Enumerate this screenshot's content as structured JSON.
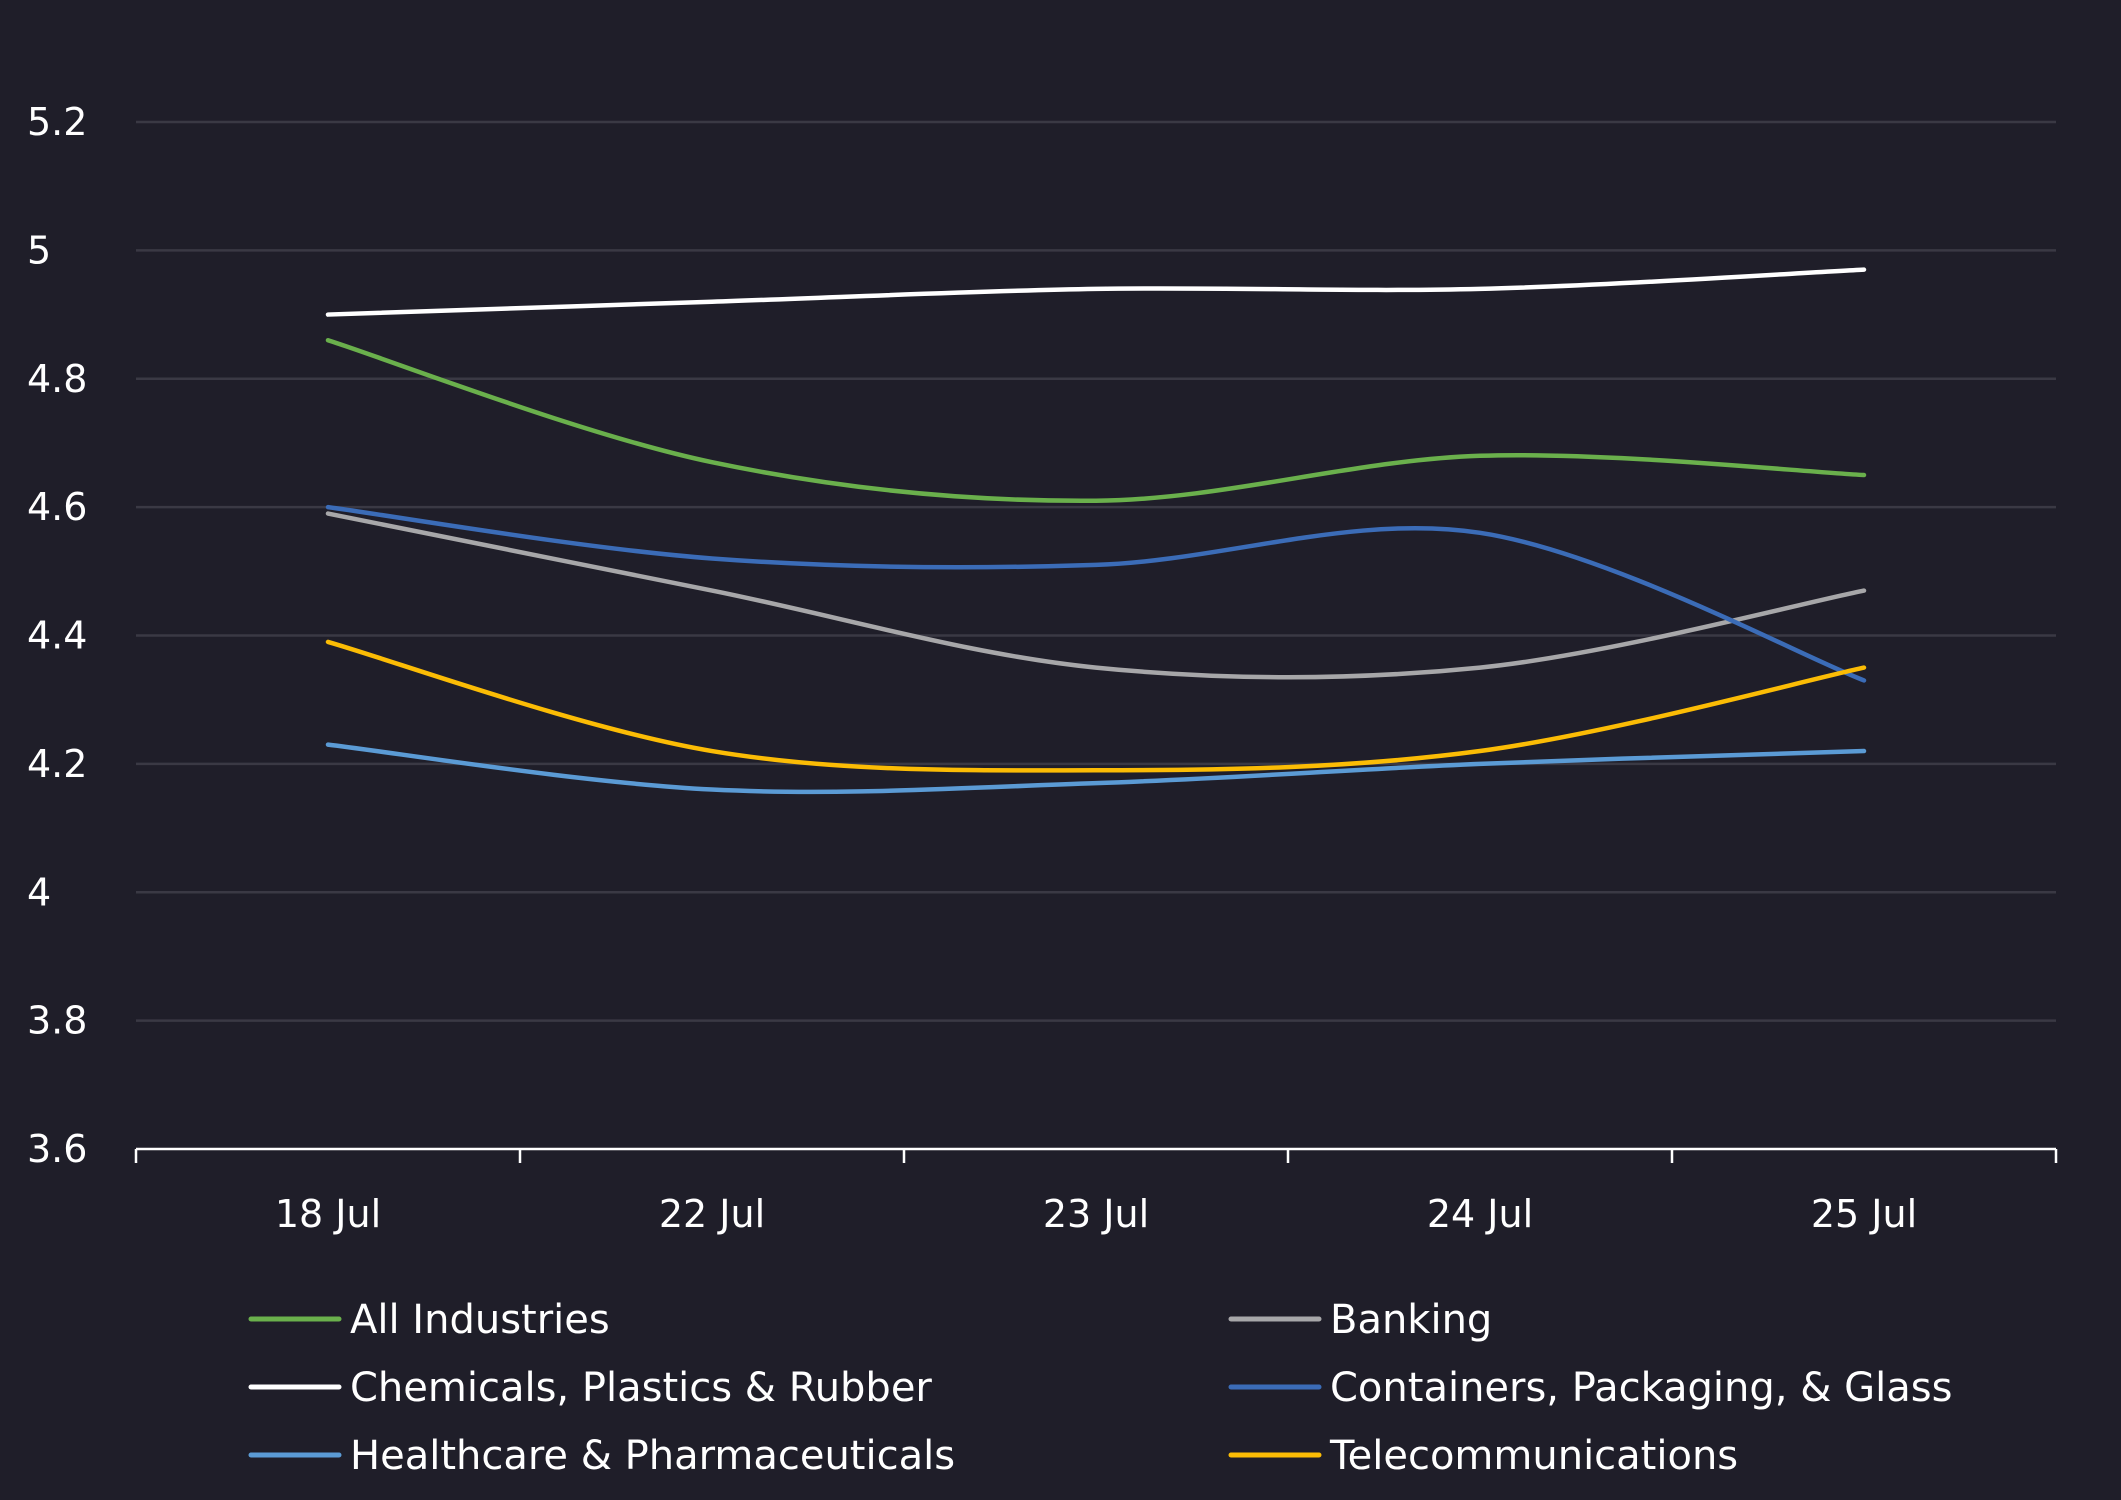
{
  "chart_data": {
    "type": "line",
    "title": "",
    "xlabel": "",
    "ylabel": "",
    "categories": [
      "18 Jul",
      "22 Jul",
      "23 Jul",
      "24 Jul",
      "25 Jul"
    ],
    "ylim": [
      3.6,
      5.2
    ],
    "yticks": [
      "5.2",
      "5",
      "4.8",
      "4.6",
      "4.4",
      "4.2",
      "4",
      "3.8",
      "3.6"
    ],
    "grid": true,
    "legend_position": "bottom",
    "background": "#1f1e29",
    "series": [
      {
        "name": "All Industries",
        "color": "#6ab04c",
        "values": [
          4.86,
          4.67,
          4.61,
          4.68,
          4.65
        ]
      },
      {
        "name": "Banking",
        "color": "#a7a7a9",
        "values": [
          4.59,
          4.47,
          4.35,
          4.35,
          4.47
        ]
      },
      {
        "name": "Chemicals, Plastics & Rubber",
        "color": "#ffffff",
        "values": [
          4.9,
          4.92,
          4.94,
          4.94,
          4.97
        ]
      },
      {
        "name": "Containers, Packaging, & Glass",
        "color": "#3b6cb7",
        "values": [
          4.6,
          4.52,
          4.51,
          4.56,
          4.33
        ]
      },
      {
        "name": "Healthcare & Pharmaceuticals",
        "color": "#5b9bd5",
        "values": [
          4.23,
          4.16,
          4.17,
          4.2,
          4.22
        ]
      },
      {
        "name": "Telecommunications",
        "color": "#fbbc05",
        "values": [
          4.39,
          4.22,
          4.19,
          4.22,
          4.35
        ]
      }
    ]
  }
}
